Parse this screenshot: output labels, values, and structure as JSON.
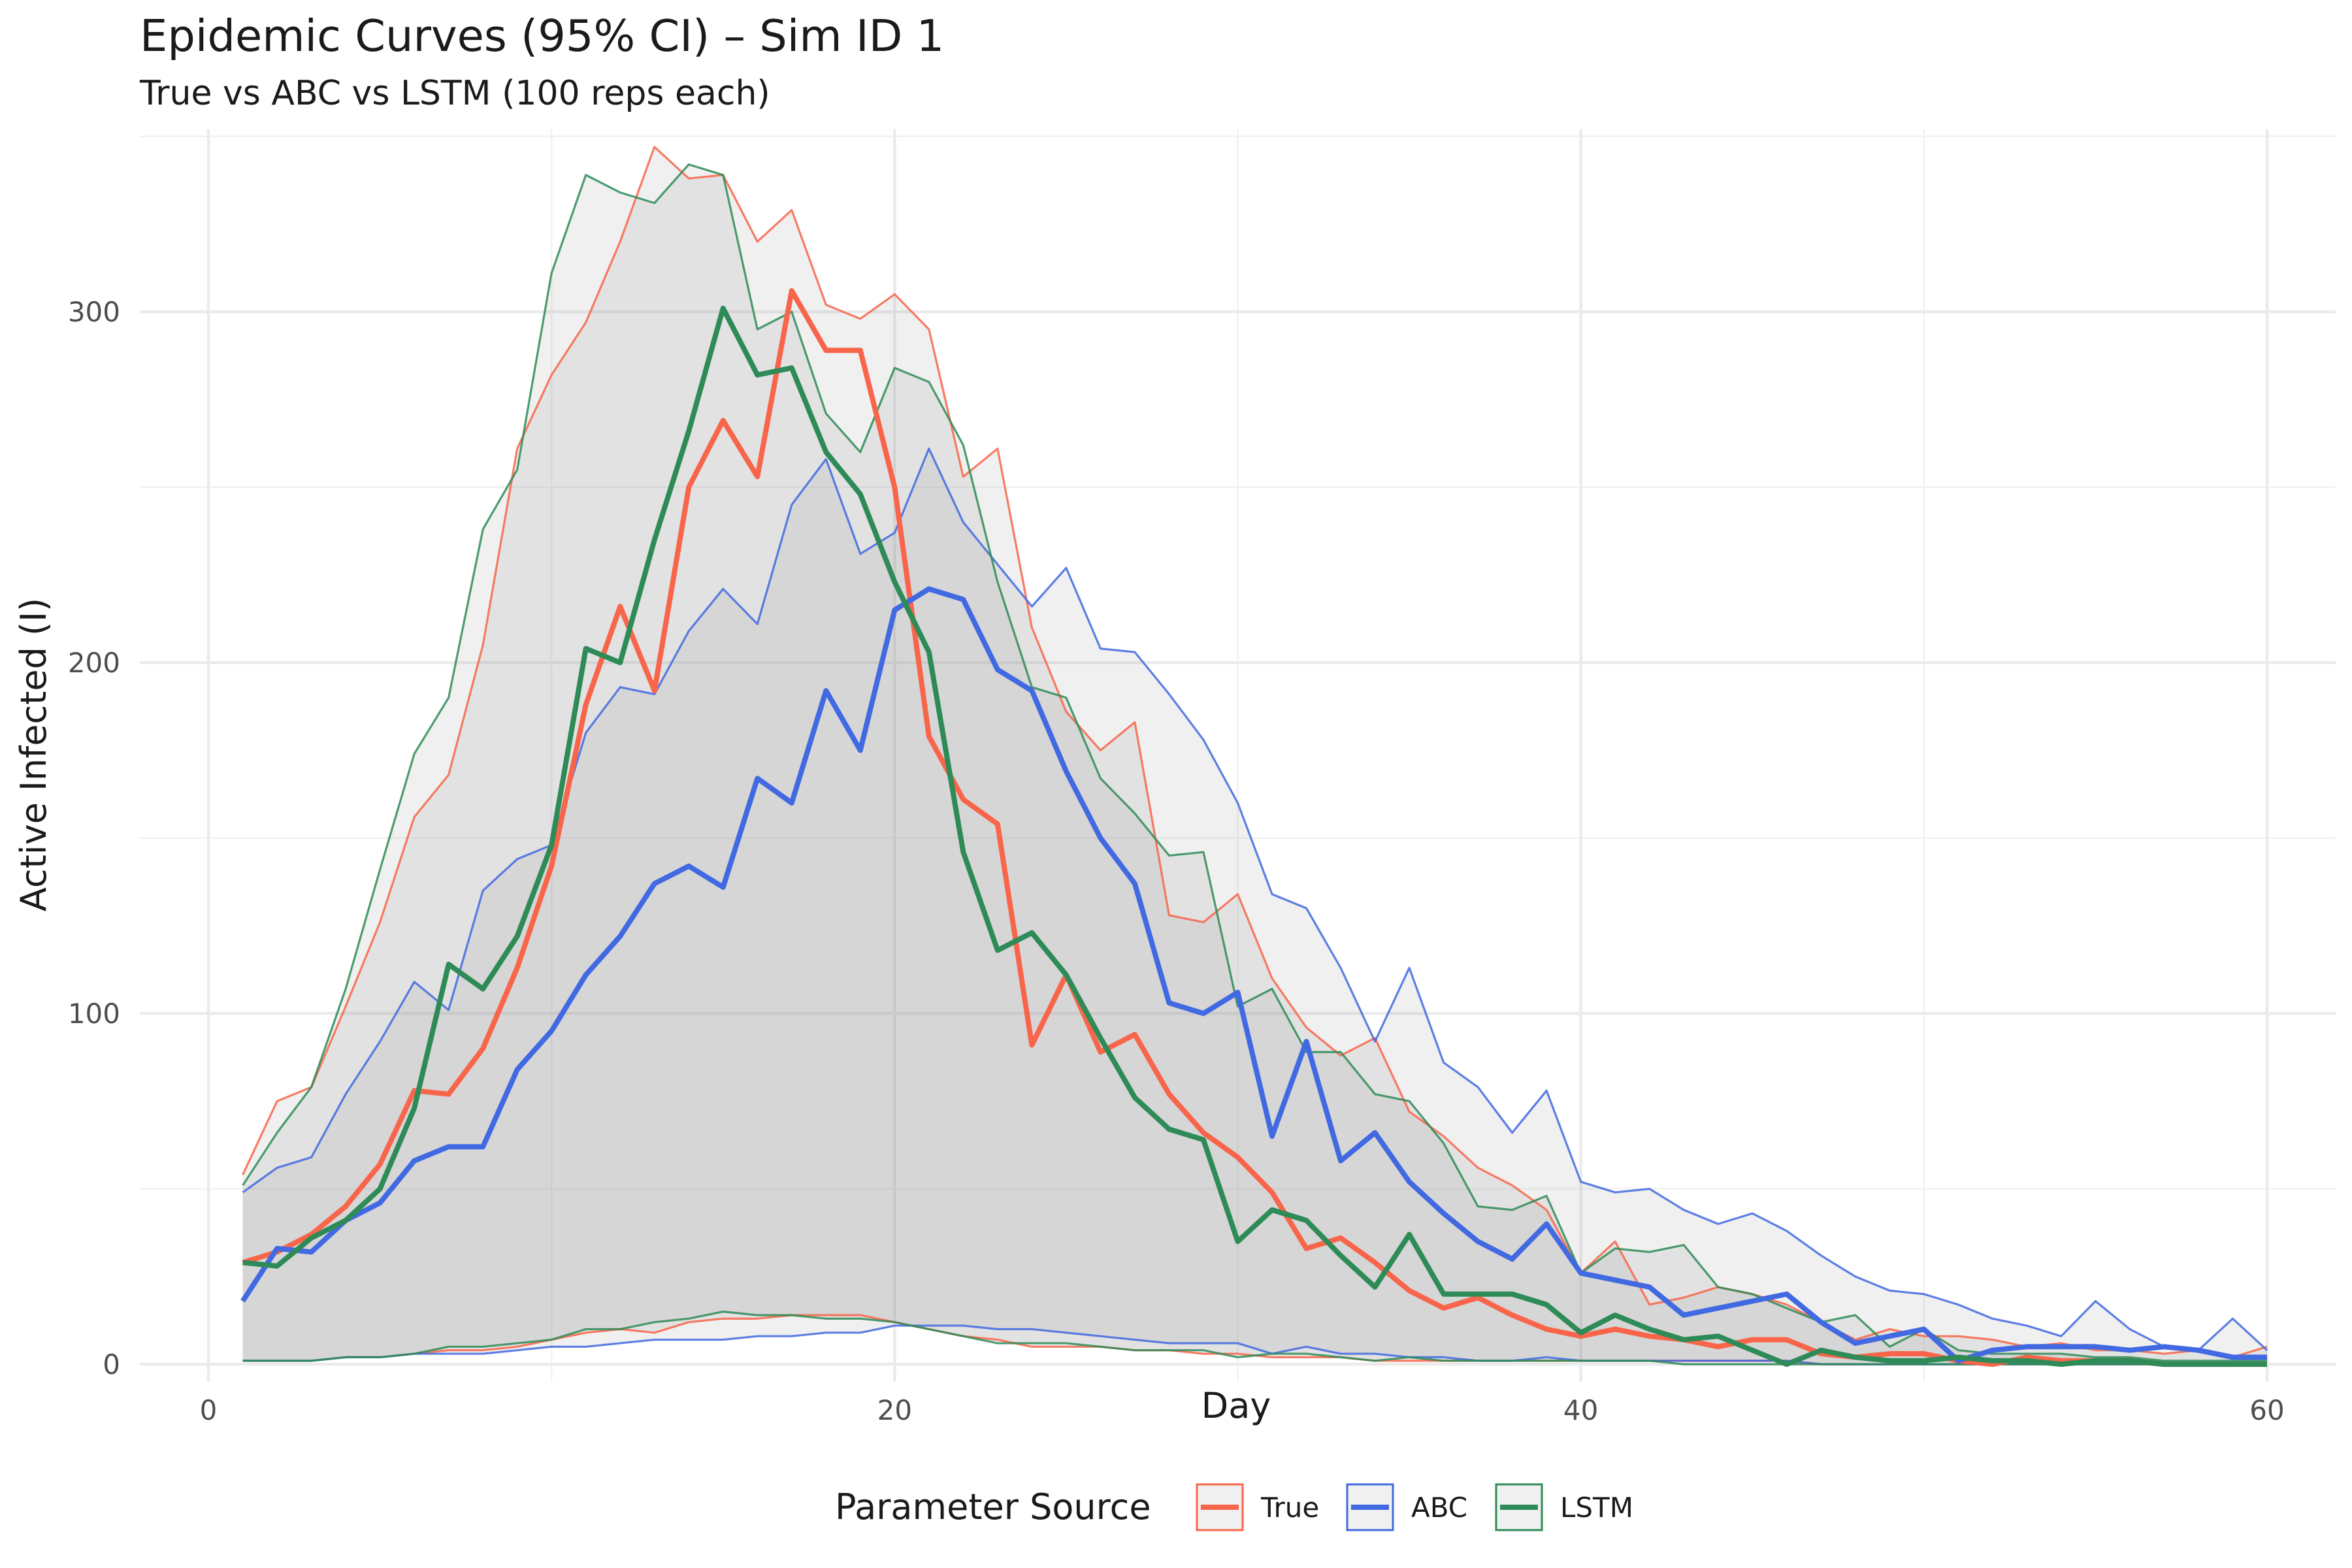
{
  "chart_data": {
    "type": "line",
    "title": "Epidemic Curves (95% CI) – Sim ID 1",
    "subtitle": "True vs ABC vs LSTM (100 reps each)",
    "xlabel": "Day",
    "ylabel": "Active Infected (I)",
    "xlim": [
      -2,
      62
    ],
    "ylim": [
      -5,
      352
    ],
    "x_ticks": [
      0,
      20,
      40,
      60
    ],
    "y_ticks": [
      0,
      100,
      200,
      300
    ],
    "grid": true,
    "legend": {
      "title": "Parameter Source",
      "position": "bottom"
    },
    "x": [
      1,
      2,
      3,
      4,
      5,
      6,
      7,
      8,
      9,
      10,
      11,
      12,
      13,
      14,
      15,
      16,
      17,
      18,
      19,
      20,
      21,
      22,
      23,
      24,
      25,
      26,
      27,
      28,
      29,
      30,
      31,
      32,
      33,
      34,
      35,
      36,
      37,
      38,
      39,
      40,
      41,
      42,
      43,
      44,
      45,
      46,
      47,
      48,
      49,
      50,
      51,
      52,
      53,
      54,
      55,
      56,
      57,
      58,
      59,
      60
    ],
    "series": [
      {
        "name": "True",
        "color": "#F8654A",
        "mean": [
          29,
          32,
          37,
          45,
          57,
          78,
          77,
          90,
          113,
          142,
          188,
          216,
          192,
          250,
          269,
          253,
          306,
          289,
          289,
          250,
          179,
          161,
          154,
          91,
          111,
          89,
          94,
          77,
          66,
          59,
          49,
          33,
          36,
          29,
          21,
          16,
          19,
          14,
          10,
          8,
          10,
          8,
          7,
          5,
          7,
          7,
          3,
          2,
          3,
          3,
          1,
          0,
          2,
          1,
          1,
          1,
          0,
          0,
          0,
          0
        ],
        "upper": [
          54,
          75,
          79,
          102,
          126,
          156,
          168,
          205,
          261,
          282,
          297,
          320,
          347,
          338,
          339,
          320,
          329,
          302,
          298,
          305,
          295,
          253,
          261,
          210,
          186,
          175,
          183,
          128,
          126,
          134,
          110,
          96,
          88,
          93,
          72,
          65,
          56,
          51,
          44,
          26,
          35,
          17,
          19,
          22,
          20,
          17,
          12,
          7,
          10,
          8,
          8,
          7,
          5,
          6,
          4,
          4,
          3,
          4,
          2,
          5
        ],
        "lower": [
          1,
          1,
          1,
          2,
          2,
          3,
          4,
          4,
          5,
          7,
          9,
          10,
          9,
          12,
          13,
          13,
          14,
          14,
          14,
          12,
          10,
          8,
          7,
          5,
          5,
          5,
          4,
          4,
          3,
          3,
          2,
          2,
          2,
          1,
          1,
          1,
          1,
          1,
          1,
          1,
          1,
          1,
          1,
          1,
          1,
          1,
          0,
          0,
          0,
          0,
          0,
          0,
          0,
          0,
          0,
          0,
          0,
          0,
          0,
          0
        ]
      },
      {
        "name": "ABC",
        "color": "#4169E1",
        "mean": [
          18,
          33,
          32,
          41,
          46,
          58,
          62,
          62,
          84,
          95,
          111,
          122,
          137,
          142,
          136,
          167,
          160,
          192,
          175,
          215,
          221,
          218,
          198,
          192,
          169,
          150,
          137,
          103,
          100,
          106,
          65,
          92,
          58,
          66,
          52,
          43,
          35,
          30,
          40,
          26,
          24,
          22,
          14,
          16,
          18,
          20,
          12,
          6,
          8,
          10,
          1,
          4,
          5,
          5,
          5,
          4,
          5,
          4,
          2,
          2
        ],
        "upper": [
          49,
          56,
          59,
          77,
          92,
          109,
          101,
          135,
          144,
          148,
          180,
          193,
          191,
          209,
          221,
          211,
          245,
          258,
          231,
          237,
          261,
          240,
          228,
          216,
          227,
          204,
          203,
          191,
          178,
          160,
          134,
          130,
          113,
          92,
          113,
          86,
          79,
          66,
          78,
          52,
          49,
          50,
          44,
          40,
          43,
          38,
          31,
          25,
          21,
          20,
          17,
          13,
          11,
          8,
          18,
          10,
          5,
          4,
          13,
          4
        ],
        "lower": [
          1,
          1,
          1,
          2,
          2,
          3,
          3,
          3,
          4,
          5,
          5,
          6,
          7,
          7,
          7,
          8,
          8,
          9,
          9,
          11,
          11,
          11,
          10,
          10,
          9,
          8,
          7,
          6,
          6,
          6,
          3,
          5,
          3,
          3,
          2,
          2,
          1,
          1,
          2,
          1,
          1,
          1,
          1,
          1,
          1,
          1,
          0,
          0,
          0,
          0,
          0,
          0,
          0,
          0,
          0,
          0,
          0,
          0,
          0,
          0
        ]
      },
      {
        "name": "LSTM",
        "color": "#2E8B57",
        "mean": [
          29,
          28,
          36,
          41,
          50,
          73,
          114,
          107,
          122,
          148,
          204,
          200,
          235,
          266,
          301,
          282,
          284,
          260,
          248,
          223,
          203,
          146,
          118,
          123,
          111,
          93,
          76,
          67,
          64,
          35,
          44,
          41,
          31,
          22,
          37,
          20,
          20,
          20,
          17,
          9,
          14,
          10,
          7,
          8,
          4,
          0,
          4,
          2,
          1,
          1,
          2,
          1,
          1,
          0,
          1,
          1,
          0,
          0,
          0,
          0
        ],
        "upper": [
          51,
          66,
          79,
          107,
          141,
          174,
          190,
          238,
          255,
          311,
          339,
          334,
          331,
          342,
          339,
          295,
          300,
          271,
          260,
          284,
          280,
          262,
          223,
          193,
          190,
          167,
          157,
          145,
          146,
          102,
          107,
          89,
          89,
          77,
          75,
          63,
          45,
          44,
          48,
          26,
          33,
          32,
          34,
          22,
          20,
          16,
          12,
          14,
          5,
          10,
          4,
          3,
          3,
          3,
          2,
          2,
          1,
          1,
          1,
          1
        ],
        "lower": [
          1,
          1,
          1,
          2,
          2,
          3,
          5,
          5,
          6,
          7,
          10,
          10,
          12,
          13,
          15,
          14,
          14,
          13,
          13,
          12,
          10,
          8,
          6,
          6,
          6,
          5,
          4,
          4,
          4,
          2,
          3,
          3,
          2,
          1,
          2,
          1,
          1,
          1,
          1,
          1,
          1,
          1,
          0,
          0,
          0,
          0,
          0,
          0,
          0,
          0,
          0,
          0,
          0,
          0,
          0,
          0,
          0,
          0,
          0,
          0
        ]
      }
    ]
  }
}
